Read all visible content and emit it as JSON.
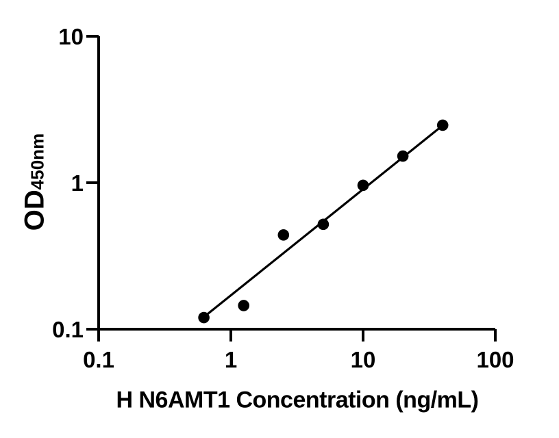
{
  "figure": {
    "background": "#ffffff",
    "title": ""
  },
  "chart_data": {
    "type": "scatter",
    "title": "",
    "xlabel": "H N6AMT1 Concentration (ng/mL)",
    "ylabel": "OD450nm",
    "ylabel_main": "OD",
    "ylabel_sub": "450nm",
    "x_scale": "log",
    "y_scale": "log",
    "xlim": [
      0.1,
      100
    ],
    "ylim": [
      0.1,
      10
    ],
    "x_tick_values": [
      0.1,
      1,
      10,
      100
    ],
    "x_tick_labels": [
      "0.1",
      "1",
      "10",
      "100"
    ],
    "y_tick_values": [
      10,
      1,
      0.1
    ],
    "y_tick_labels": [
      "10",
      "1",
      "0.1"
    ],
    "grid": false,
    "legend": "none",
    "axis_color": "#000000",
    "series": [
      {
        "name": "fit-line",
        "type": "line",
        "color": "#000000",
        "points": [
          {
            "x": 0.66,
            "y": 0.126
          },
          {
            "x": 39.5,
            "y": 2.44
          }
        ]
      },
      {
        "name": "standard-points",
        "type": "scatter",
        "marker": "circle",
        "color": "#000000",
        "points": [
          {
            "x": 0.625,
            "y": 0.12
          },
          {
            "x": 1.25,
            "y": 0.145
          },
          {
            "x": 2.5,
            "y": 0.44
          },
          {
            "x": 5,
            "y": 0.52
          },
          {
            "x": 10,
            "y": 0.96
          },
          {
            "x": 20,
            "y": 1.52
          },
          {
            "x": 40,
            "y": 2.47
          }
        ]
      }
    ]
  }
}
